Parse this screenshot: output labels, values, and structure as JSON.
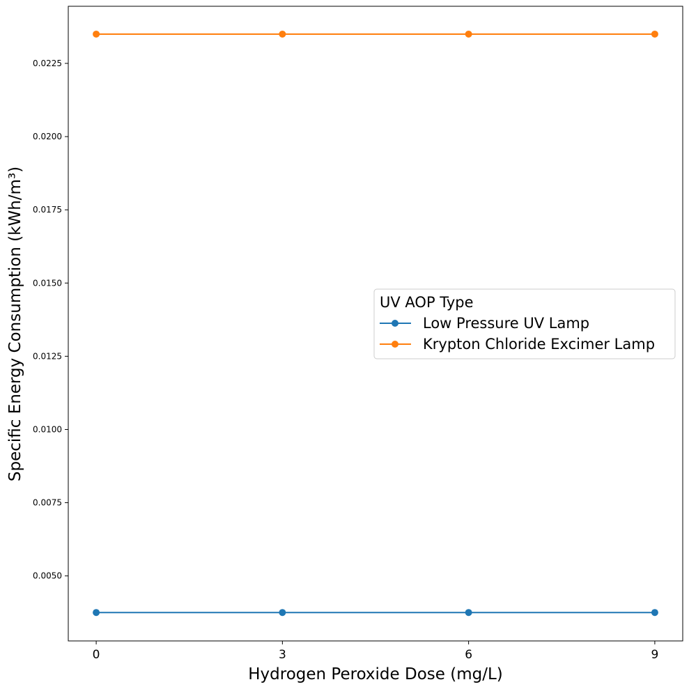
{
  "chart_data": {
    "type": "line",
    "title": "",
    "xlabel": "Hydrogen Peroxide Dose (mg/L)",
    "ylabel": "Specific Energy Consumption (kWh/m³)",
    "x": [
      0,
      3,
      6,
      9
    ],
    "x_ticks": [
      0,
      3,
      6,
      9
    ],
    "x_tick_labels": [
      "0",
      "3",
      "6",
      "9"
    ],
    "xlim": [
      -0.45,
      9.45
    ],
    "y_ticks": [
      0.005,
      0.0075,
      0.01,
      0.0125,
      0.015,
      0.0175,
      0.02,
      0.0225
    ],
    "y_tick_labels": [
      "0.0050",
      "0.0075",
      "0.0100",
      "0.0125",
      "0.0150",
      "0.0175",
      "0.0200",
      "0.0225"
    ],
    "ylim": [
      0.00278,
      0.02445
    ],
    "grid": false,
    "legend": {
      "title": "UV AOP Type",
      "placement": "center-right"
    },
    "series": [
      {
        "name": "Low Pressure UV Lamp",
        "values": [
          0.00375,
          0.00375,
          0.00375,
          0.00375
        ],
        "color": "#1f77b4",
        "marker": "circle"
      },
      {
        "name": "Krypton Chloride Excimer Lamp",
        "values": [
          0.0235,
          0.0235,
          0.0235,
          0.0235
        ],
        "color": "#ff7f0e",
        "marker": "circle"
      }
    ]
  }
}
